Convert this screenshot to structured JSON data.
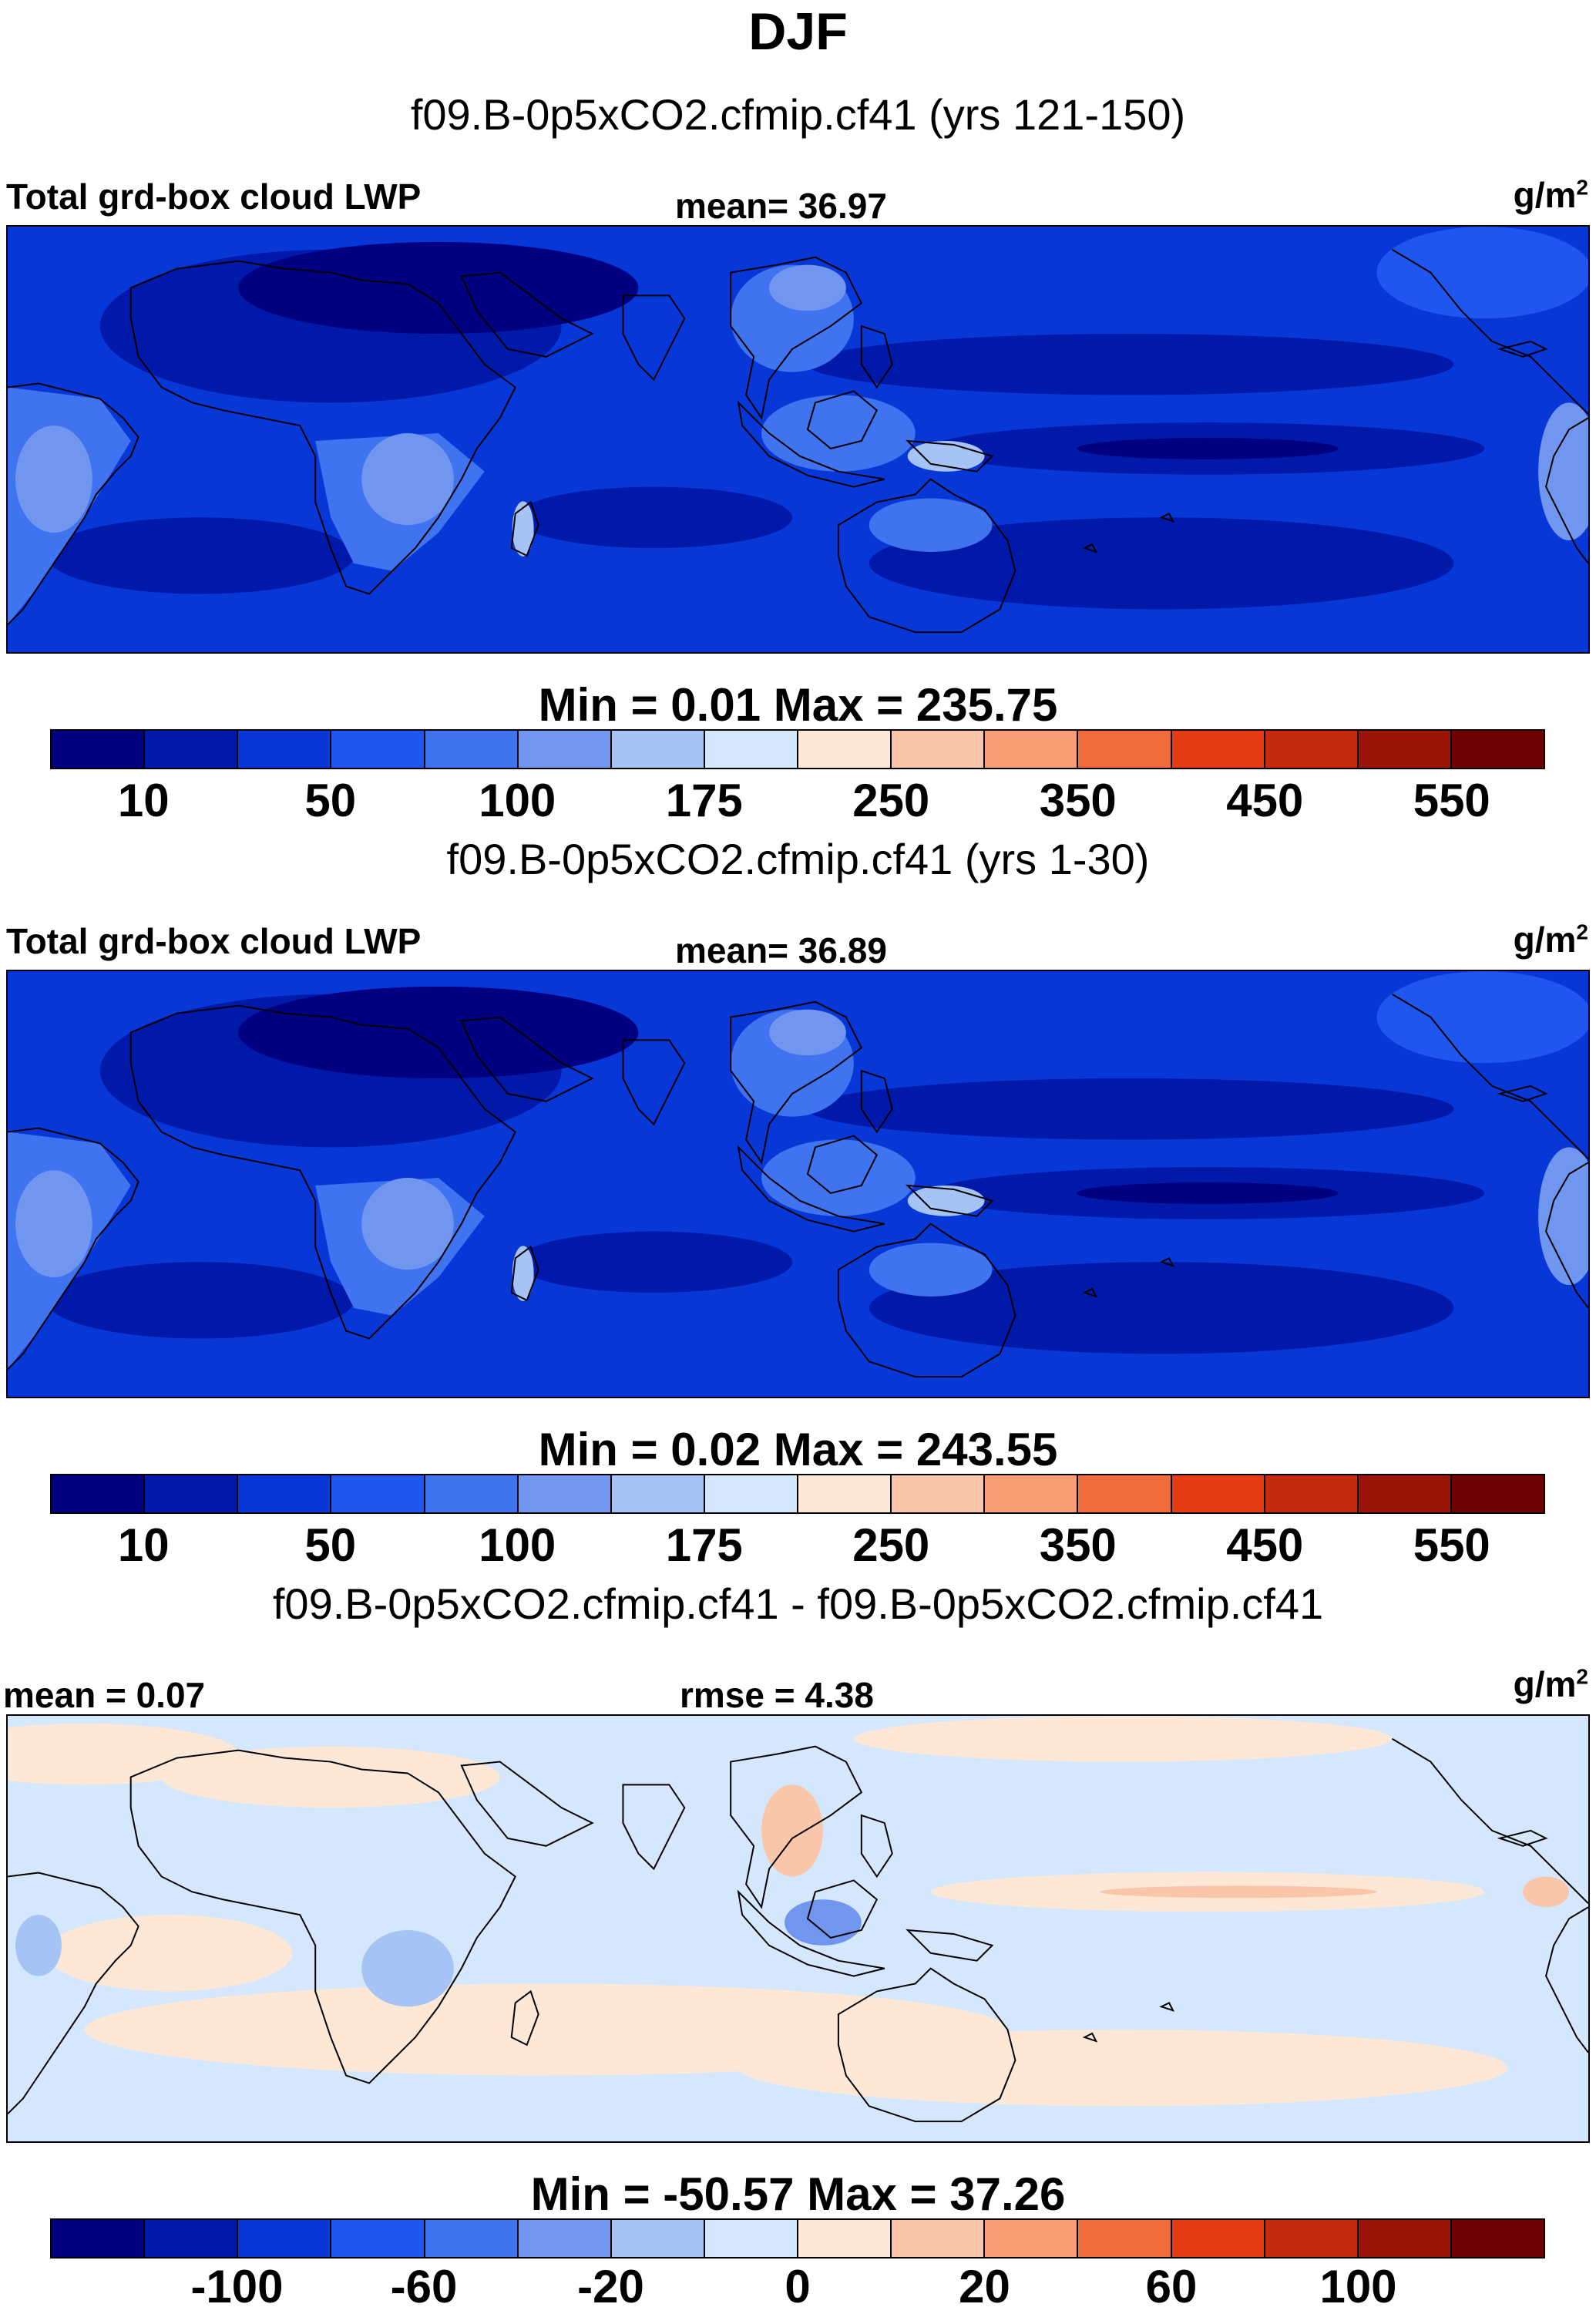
{
  "season": "DJF",
  "colormaps": {
    "levels": [
      "#000080",
      "#0019a8",
      "#0837d8",
      "#1f56f0",
      "#3f73f0",
      "#7196f0",
      "#a6c3f5",
      "#d5e7fc",
      "#fde8d8",
      "#fac6a9",
      "#f79c73",
      "#f16b3c",
      "#e63c14",
      "#c42a0c",
      "#9a1408",
      "#700000"
    ]
  },
  "panels": [
    {
      "subtitle": "f09.B-0p5xCO2.cfmip.cf41 (yrs 121-150)",
      "left_label": "Total grd-box cloud LWP",
      "center_label": "mean=  36.97",
      "units": "g/m",
      "units_exp": "2",
      "minmax": "Min =   0.01 Max = 235.75",
      "ticks": [
        "10",
        "50",
        "100",
        "175",
        "250",
        "350",
        "450",
        "550"
      ],
      "kind": "field"
    },
    {
      "subtitle": "f09.B-0p5xCO2.cfmip.cf41 (yrs 1-30)",
      "left_label": "Total grd-box cloud LWP",
      "center_label": "mean=  36.89",
      "units": "g/m",
      "units_exp": "2",
      "minmax": "Min =   0.02 Max = 243.55",
      "ticks": [
        "10",
        "50",
        "100",
        "175",
        "250",
        "350",
        "450",
        "550"
      ],
      "kind": "field"
    },
    {
      "subtitle": "f09.B-0p5xCO2.cfmip.cf41 - f09.B-0p5xCO2.cfmip.cf41",
      "left_label": "mean =   0.07",
      "center_label": "rmse =   4.38",
      "units": "g/m",
      "units_exp": "2",
      "minmax": "Min = -50.57 Max =  37.26",
      "ticks": [
        "-100",
        "-60",
        "-20",
        "0",
        "20",
        "60",
        "100"
      ],
      "kind": "diff"
    }
  ]
}
